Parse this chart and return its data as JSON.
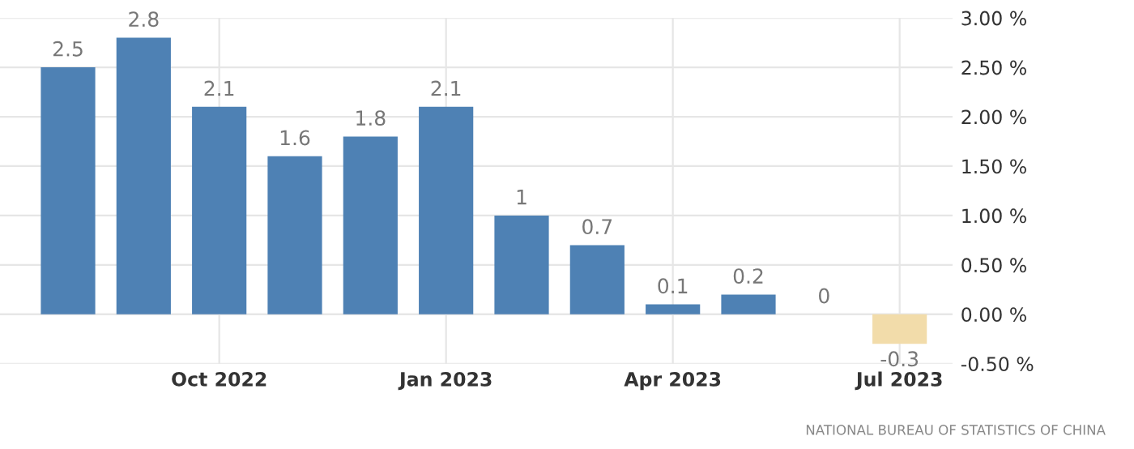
{
  "chart_data": {
    "type": "bar",
    "categories": [
      null,
      null,
      "Oct 2022",
      null,
      null,
      "Jan 2023",
      null,
      null,
      "Apr 2023",
      null,
      null,
      "Jul 2023"
    ],
    "values": [
      2.5,
      2.8,
      2.1,
      1.6,
      1.8,
      2.1,
      1,
      0.7,
      0.1,
      0.2,
      0,
      -0.3
    ],
    "colors": [
      "#4e81b4",
      "#4e81b4",
      "#4e81b4",
      "#4e81b4",
      "#4e81b4",
      "#4e81b4",
      "#4e81b4",
      "#4e81b4",
      "#4e81b4",
      "#4e81b4",
      "#4e81b4",
      "#f2dcaa"
    ],
    "data_labels": true,
    "ylim": [
      -0.5,
      3.0
    ],
    "yticks": [
      {
        "value": -0.5,
        "label": "-0.50 %"
      },
      {
        "value": 0,
        "label": "0.00 %"
      },
      {
        "value": 0.5,
        "label": "0.50 %"
      },
      {
        "value": 1.0,
        "label": "1.00 %"
      },
      {
        "value": 1.5,
        "label": "1.50 %"
      },
      {
        "value": 2.0,
        "label": "2.00 %"
      },
      {
        "value": 2.5,
        "label": "2.50 %"
      },
      {
        "value": 3.0,
        "label": "3.00 %"
      }
    ],
    "grid": true,
    "annotations": [
      "NATIONAL BUREAU OF STATISTICS OF CHINA"
    ]
  }
}
